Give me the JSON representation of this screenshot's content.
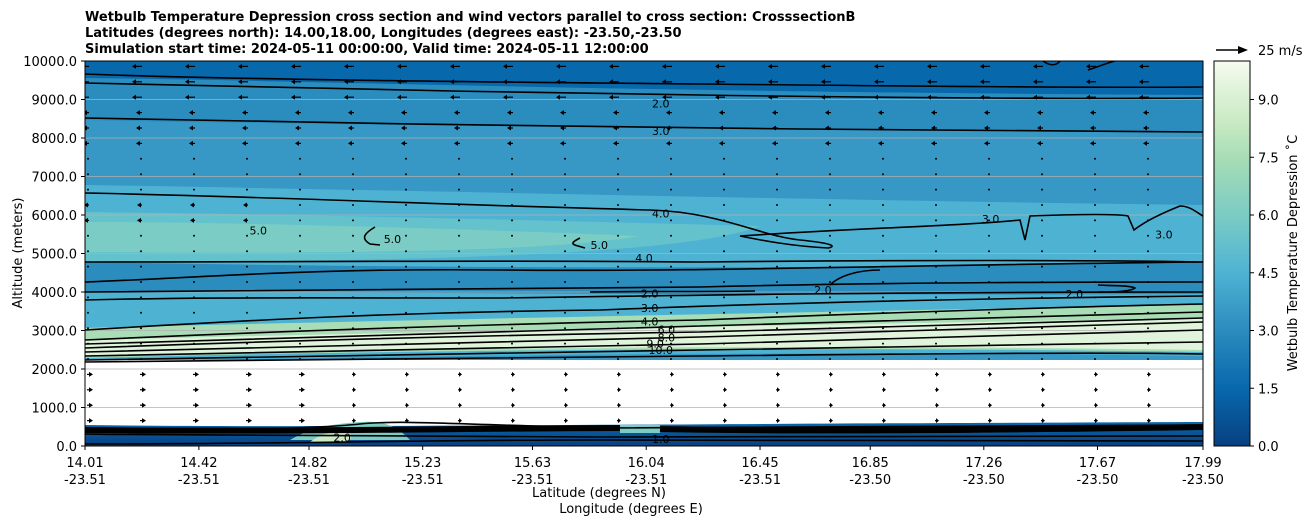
{
  "chart_data": {
    "type": "contour",
    "title_lines": [
      "Wetbulb Temperature Depression cross section and wind vectors parallel to cross section: CrosssectionB",
      "Latitudes (degrees north): 14.00,18.00, Longitudes (degrees east): -23.50,-23.50",
      "Simulation start time: 2024-05-11 00:00:00, Valid time: 2024-05-11 12:00:00"
    ],
    "xlabel_lines": [
      "Latitude (degrees N)",
      "Longitude (degrees E)"
    ],
    "ylabel": "Altitude (meters)",
    "ylim": [
      0,
      10000
    ],
    "xlim": [
      0,
      10
    ],
    "y_ticks": [
      "0.0",
      "1000.0",
      "2000.0",
      "3000.0",
      "4000.0",
      "5000.0",
      "6000.0",
      "7000.0",
      "8000.0",
      "9000.0",
      "10000.0"
    ],
    "x_ticks": [
      {
        "lat": "14.01",
        "lon": "-23.51"
      },
      {
        "lat": "14.42",
        "lon": "-23.51"
      },
      {
        "lat": "14.82",
        "lon": "-23.51"
      },
      {
        "lat": "15.23",
        "lon": "-23.51"
      },
      {
        "lat": "15.63",
        "lon": "-23.51"
      },
      {
        "lat": "16.04",
        "lon": "-23.51"
      },
      {
        "lat": "16.45",
        "lon": "-23.51"
      },
      {
        "lat": "16.85",
        "lon": "-23.50"
      },
      {
        "lat": "17.26",
        "lon": "-23.50"
      },
      {
        "lat": "17.67",
        "lon": "-23.50"
      },
      {
        "lat": "17.99",
        "lon": "-23.50"
      }
    ],
    "colorbar": {
      "label": "Wetbulb Temperature Depression ˚C",
      "min": 0,
      "max": 10,
      "levels": 20,
      "ticks": [
        "0.0",
        "1.5",
        "3.0",
        "4.5",
        "6.0",
        "7.5",
        "9.0"
      ]
    },
    "quiver_key": {
      "label": "25 m/s"
    },
    "contour_labels": [
      {
        "text": "2.0",
        "x": 5.15,
        "y": 8900
      },
      {
        "text": "3.0",
        "x": 5.15,
        "y": 8180
      },
      {
        "text": "4.0",
        "x": 5.15,
        "y": 6040
      },
      {
        "text": "4.0",
        "x": 5.0,
        "y": 4880
      },
      {
        "text": "5.0",
        "x": 1.55,
        "y": 5600
      },
      {
        "text": "5.0",
        "x": 2.75,
        "y": 5380
      },
      {
        "text": "5.0",
        "x": 4.6,
        "y": 5220
      },
      {
        "text": "3.0",
        "x": 8.1,
        "y": 5900
      },
      {
        "text": "3.0",
        "x": 9.65,
        "y": 5500
      },
      {
        "text": "2.0",
        "x": 6.6,
        "y": 4050
      },
      {
        "text": "2.0",
        "x": 8.85,
        "y": 3950
      },
      {
        "text": "2.0",
        "x": 5.05,
        "y": 3960
      },
      {
        "text": "3.0",
        "x": 5.05,
        "y": 3580
      },
      {
        "text": "4.0",
        "x": 5.05,
        "y": 3240
      },
      {
        "text": "6.0",
        "x": 5.2,
        "y": 3020
      },
      {
        "text": "8.0",
        "x": 5.2,
        "y": 2820
      },
      {
        "text": "9.0",
        "x": 5.1,
        "y": 2660
      },
      {
        "text": "10.0",
        "x": 5.15,
        "y": 2490
      },
      {
        "text": "1.0",
        "x": 5.15,
        "y": 180
      },
      {
        "text": "2.0",
        "x": 2.3,
        "y": 220
      }
    ],
    "colors": [
      "#084081",
      "#0868ac",
      "#2b8cbe",
      "#4eb3d3",
      "#7bccc4",
      "#a8ddb5",
      "#ccebc5",
      "#e0f3db",
      "#f7fcf0"
    ]
  }
}
